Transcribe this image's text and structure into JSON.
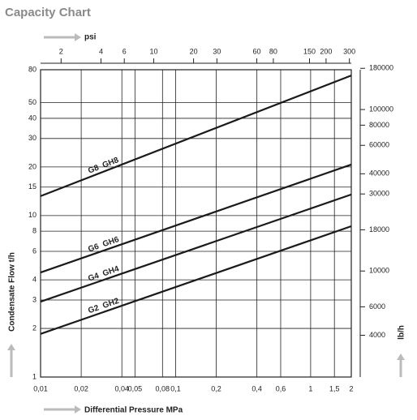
{
  "chart_data": {
    "type": "line",
    "title": "Capacity Chart",
    "xlabel": "Differential Pressure MPa",
    "ylabel": "Condensate Flow t/h",
    "x2label": "psi",
    "y2label": "lb/h",
    "xscale": "log",
    "yscale": "log",
    "grid": true,
    "x": [
      0.01,
      2
    ],
    "series": [
      {
        "name": "G8  GH8",
        "color": "#1a1a1a",
        "values": [
          13.2,
          73.7
        ]
      },
      {
        "name": "G6  GH6",
        "color": "#1a1a1a",
        "values": [
          4.44,
          20.7
        ]
      },
      {
        "name": "G4  GH4",
        "color": "#1a1a1a",
        "values": [
          2.93,
          13.5
        ]
      },
      {
        "name": "G2  GH2",
        "color": "#1a1a1a",
        "values": [
          1.85,
          8.59
        ]
      }
    ],
    "xlim": [
      0.01,
      2
    ],
    "xticks": [
      {
        "value": 0.01,
        "label": "0,01"
      },
      {
        "value": 0.02,
        "label": "0,02"
      },
      {
        "value": 0.04,
        "label": "0,04"
      },
      {
        "value": 0.05,
        "label": "0,05"
      },
      {
        "value": 0.08,
        "label": "0,08"
      },
      {
        "value": 0.1,
        "label": "0,1"
      },
      {
        "value": 0.2,
        "label": "0,2"
      },
      {
        "value": 0.4,
        "label": "0,4"
      },
      {
        "value": 0.6,
        "label": "0,6"
      },
      1,
      {
        "value": 1.5,
        "label": "1,5"
      },
      2
    ],
    "ylim": [
      1,
      80
    ],
    "yticks": [
      1,
      2,
      3,
      4,
      6,
      8,
      10,
      15,
      20,
      30,
      40,
      50,
      80
    ],
    "x2lim": [
      1.4,
      310
    ],
    "x2ticks": [
      2,
      4,
      6,
      10,
      20,
      30,
      60,
      80,
      150,
      200,
      300
    ],
    "y2lim": [
      2205,
      176400
    ],
    "y2ticks": [
      180000,
      100000,
      80000,
      60000,
      40000,
      30000,
      18000,
      10000,
      6000,
      4000
    ]
  }
}
